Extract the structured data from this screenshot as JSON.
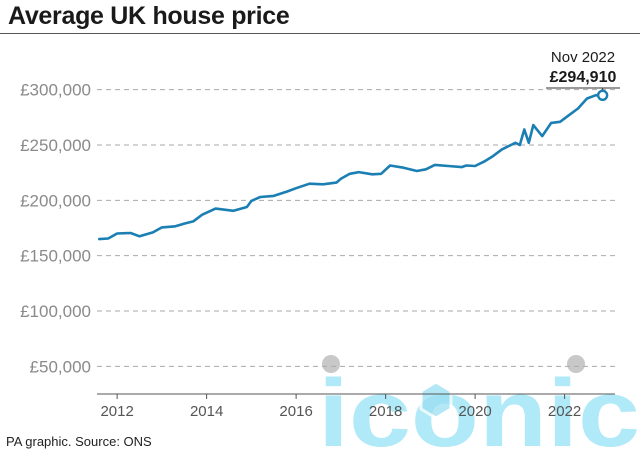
{
  "title": "Average UK house price",
  "source": "PA graphic. Source: ONS",
  "watermark": "iconic",
  "colors": {
    "line": "#1b7fb3",
    "grid": "#aaaaaa",
    "axis_text": "#8a8a8a",
    "watermark": "#8fe0f5"
  },
  "annotation": {
    "date": "Nov 2022",
    "value": "£294,910"
  },
  "chart_data": {
    "type": "line",
    "title": "Average UK house price",
    "xlabel": "",
    "ylabel": "",
    "xlim": [
      2011.55,
      2023.35
    ],
    "ylim": [
      25000,
      325000
    ],
    "y_ticks": [
      50000,
      100000,
      150000,
      200000,
      250000,
      300000
    ],
    "y_tick_labels": [
      "£50,000",
      "£100,000",
      "£150,000",
      "£200,000",
      "£250,000",
      "£300,000"
    ],
    "x_ticks": [
      2012,
      2014,
      2016,
      2018,
      2020,
      2022
    ],
    "x_tick_labels": [
      "2012",
      "2014",
      "2016",
      "2018",
      "2020",
      "2022"
    ],
    "grid": "horizontal dashed",
    "series": [
      {
        "x": [
          2011.6,
          2011.8,
          2012.0,
          2012.3,
          2012.5,
          2012.8,
          2013.0,
          2013.3,
          2013.5,
          2013.7,
          2013.9,
          2014.2,
          2014.4,
          2014.6,
          2014.9,
          2015.0,
          2015.2,
          2015.5,
          2015.8,
          2016.0,
          2016.3,
          2016.6,
          2016.9,
          2017.0,
          2017.2,
          2017.4,
          2017.7,
          2017.9,
          2018.1,
          2018.4,
          2018.7,
          2018.9,
          2019.1,
          2019.4,
          2019.7,
          2019.8,
          2020.0,
          2020.2,
          2020.4,
          2020.6,
          2020.8,
          2020.9,
          2021.0,
          2021.1,
          2021.2,
          2021.3,
          2021.5,
          2021.7,
          2021.9,
          2022.1,
          2022.3,
          2022.5,
          2022.7,
          2022.85
        ],
        "y": [
          165000,
          165500,
          170000,
          170500,
          167500,
          171000,
          175500,
          176500,
          179000,
          181000,
          187000,
          192500,
          191500,
          190500,
          194000,
          199500,
          203000,
          204000,
          208000,
          211000,
          215000,
          214500,
          216000,
          219500,
          224000,
          225500,
          223500,
          224000,
          231500,
          229500,
          226500,
          228000,
          232000,
          231000,
          230000,
          231500,
          231000,
          235000,
          240000,
          246000,
          250000,
          252000,
          250000,
          264000,
          252000,
          268000,
          258000,
          270000,
          271000,
          277000,
          283000,
          292000,
          295000,
          294910
        ]
      }
    ]
  }
}
